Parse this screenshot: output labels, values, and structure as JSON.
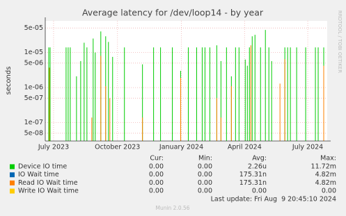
{
  "chart_data": {
    "type": "spikes",
    "title": "Average latency for /dev/loop14 - by year",
    "y_label": "seconds",
    "log_y": true,
    "grid": true,
    "ylim": [
      3e-08,
      8e-05
    ],
    "yticks": [
      {
        "value": 5e-08,
        "label": "5e-08"
      },
      {
        "value": 1e-07,
        "label": "1e-07"
      },
      {
        "value": 5e-07,
        "label": "5e-07"
      },
      {
        "value": 1e-06,
        "label": "1e-06"
      },
      {
        "value": 5e-06,
        "label": "5e-06"
      },
      {
        "value": 1e-05,
        "label": "1e-05"
      },
      {
        "value": 5e-05,
        "label": "5e-05"
      }
    ],
    "xlim": [
      "2023-06-19",
      "2024-07-29"
    ],
    "xticks": [
      {
        "value": "2023-07-01",
        "label": "July 2023"
      },
      {
        "value": "2023-10-01",
        "label": "October 2023"
      },
      {
        "value": "2024-01-01",
        "label": "January 2024"
      },
      {
        "value": "2024-04-01",
        "label": "April 2024"
      },
      {
        "value": "2024-07-01",
        "label": "July 2024"
      }
    ],
    "series": [
      {
        "name": "Device IO time",
        "color": "#00cc00",
        "x": [
          "2023-06-24",
          "2023-06-26",
          "2023-07-19",
          "2023-07-22",
          "2023-07-25",
          "2023-08-03",
          "2023-08-09",
          "2023-08-14",
          "2023-08-18",
          "2023-08-27",
          "2023-08-30",
          "2023-09-07",
          "2023-09-14",
          "2023-09-18",
          "2023-09-24",
          "2023-10-11",
          "2023-11-06",
          "2023-11-22",
          "2023-12-02",
          "2023-12-19",
          "2023-12-31",
          "2024-01-11",
          "2024-01-23",
          "2024-01-31",
          "2024-02-04",
          "2024-02-11",
          "2024-02-21",
          "2024-02-27",
          "2024-03-06",
          "2024-03-13",
          "2024-03-19",
          "2024-03-24",
          "2024-04-02",
          "2024-04-05",
          "2024-04-08",
          "2024-04-12",
          "2024-04-16",
          "2024-04-24",
          "2024-05-01",
          "2024-05-06",
          "2024-05-10",
          "2024-05-29",
          "2024-06-02",
          "2024-06-06",
          "2024-06-15",
          "2024-06-28",
          "2024-07-12",
          "2024-07-16",
          "2024-07-24"
        ],
        "values": [
          1.4e-05,
          1.4e-05,
          1.4e-05,
          1.4e-05,
          1.4e-05,
          2.1e-06,
          5.7e-06,
          1.9e-05,
          1.4e-05,
          2.5e-05,
          1e-05,
          4e-05,
          2.9e-05,
          2e-05,
          7.5e-06,
          1.4e-05,
          4.6e-06,
          1.4e-05,
          1.4e-05,
          1.4e-05,
          3e-06,
          1.4e-05,
          1.4e-05,
          1.4e-05,
          1.4e-05,
          1.4e-05,
          1.6e-05,
          5.7e-06,
          1.4e-05,
          2.1e-06,
          1.4e-05,
          1.4e-05,
          6.3e-06,
          4.2e-06,
          1.4e-05,
          2.9e-05,
          3.2e-05,
          1.4e-05,
          4.4e-05,
          1.4e-05,
          5.7e-06,
          1.4e-05,
          1.4e-05,
          1.4e-05,
          1.4e-05,
          1.4e-05,
          1.4e-05,
          1.4e-05,
          1.4e-05
        ]
      },
      {
        "name": "IO Wait time",
        "color": "#0066b3"
      },
      {
        "name": "Read IO Wait time",
        "color": "#ff8000",
        "x": [
          "2023-06-25",
          "2023-08-25",
          "2023-09-07",
          "2023-09-14",
          "2023-09-20",
          "2023-11-06",
          "2023-12-31",
          "2024-02-21",
          "2024-02-27",
          "2024-03-13",
          "2024-04-10",
          "2024-05-22",
          "2024-05-29",
          "2024-07-24"
        ],
        "values": [
          3.7e-06,
          1.4e-07,
          8e-06,
          1.1e-06,
          5e-07,
          1.4e-07,
          1.9e-06,
          5e-07,
          1.4e-07,
          1.1e-06,
          1.6e-05,
          1.3e-06,
          6.5e-06,
          4.2e-06
        ]
      },
      {
        "name": "Write IO Wait time",
        "color": "#ffcc00"
      }
    ],
    "legend_headers": [
      "Cur:",
      "Min:",
      "Avg:",
      "Max:"
    ],
    "legend_stats": [
      [
        "0.00",
        "0.00",
        "2.26u",
        "11.72m"
      ],
      [
        "0.00",
        "0.00",
        "175.31n",
        "4.82m"
      ],
      [
        "0.00",
        "0.00",
        "175.31n",
        "4.82m"
      ],
      [
        "0.00",
        "0.00",
        "0.00",
        "0.00"
      ]
    ],
    "last_update": "Last update: Fri Aug  9 20:45:10 2024",
    "footer": "Munin 2.0.56",
    "side_text": "RRDTOOL / TOBI OETIKER"
  }
}
